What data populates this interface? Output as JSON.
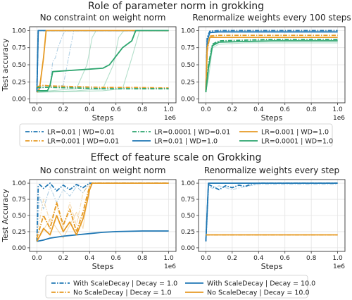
{
  "figure": {
    "top_title": "Role of parameter norm in grokking",
    "bottom_title": "Effect of feature scale on Grokking"
  },
  "colors": {
    "blue": "#1f77b4",
    "orange": "#e69a24",
    "green": "#2ca56e"
  },
  "chart_data": [
    {
      "id": "p1",
      "type": "line",
      "title": "No constraint on weight norm",
      "xlabel": "Steps",
      "ylabel": "Test accuracy",
      "x_offset_label": "1e6",
      "xlim": [
        0,
        1.0
      ],
      "ylim": [
        0,
        1.0
      ],
      "xticks": [
        "0.0",
        "0.2",
        "0.4",
        "0.6",
        "0.8",
        "1.0"
      ],
      "yticks": [
        "0.00",
        "0.25",
        "0.50",
        "0.75",
        "1.00"
      ],
      "series": [
        {
          "name": "LR=0.01 | WD=0.01",
          "color": "blue",
          "dash": "dashdot",
          "x": [
            0,
            0.01,
            0.02,
            1.0
          ],
          "y": [
            0.12,
            1.0,
            1.0,
            1.0
          ]
        },
        {
          "name": "LR=0.01 | WD=1.0",
          "color": "blue",
          "dash": "solid",
          "x": [
            0,
            0.01,
            0.02,
            1.0
          ],
          "y": [
            0.1,
            1.0,
            1.0,
            1.0
          ]
        },
        {
          "name": "LR=0.001 | WD=0.01",
          "color": "orange",
          "dash": "dashdot",
          "x": [
            0,
            0.05,
            0.1,
            0.3,
            0.5,
            0.7,
            1.0
          ],
          "y": [
            0.18,
            0.2,
            0.19,
            0.18,
            0.17,
            0.17,
            0.16
          ]
        },
        {
          "name": "LR=0.001 | WD=1.0",
          "color": "orange",
          "dash": "solid",
          "x": [
            0,
            0.02,
            0.05,
            0.07,
            1.0
          ],
          "y": [
            0.1,
            0.15,
            0.6,
            1.0,
            1.0
          ]
        },
        {
          "name": "LR=0.0001 | WD=0.01",
          "color": "green",
          "dash": "dashdot",
          "x": [
            0,
            0.1,
            0.3,
            0.5,
            0.7,
            1.0
          ],
          "y": [
            0.17,
            0.17,
            0.16,
            0.15,
            0.15,
            0.15
          ]
        },
        {
          "name": "LR=0.0001 | WD=1.0",
          "color": "green",
          "dash": "solid",
          "x": [
            0,
            0.02,
            0.08,
            0.1,
            0.12,
            0.5,
            0.55,
            0.65,
            0.72,
            0.75,
            1.0
          ],
          "y": [
            0.12,
            0.12,
            0.12,
            0.2,
            0.4,
            0.45,
            0.5,
            0.75,
            0.85,
            1.0,
            1.0
          ]
        }
      ],
      "faint": [
        {
          "color": "blue",
          "dash": "dashdot",
          "x": [
            0,
            0.1,
            0.12,
            0.14,
            0.16,
            0.18,
            0.2,
            0.22,
            1.0
          ],
          "y": [
            0.15,
            0.2,
            0.55,
            0.6,
            0.75,
            0.85,
            0.95,
            1.0,
            1.0
          ]
        },
        {
          "color": "blue",
          "dash": "dashdot",
          "x": [
            0,
            0.2,
            0.22,
            0.24,
            0.26,
            0.28,
            1.0
          ],
          "y": [
            0.15,
            0.2,
            0.4,
            0.6,
            0.8,
            1.0,
            1.0
          ]
        },
        {
          "color": "green",
          "dash": "solid",
          "x": [
            0,
            0.1,
            0.3,
            0.38,
            0.42,
            0.45,
            1.0
          ],
          "y": [
            0.1,
            0.12,
            0.15,
            0.5,
            0.9,
            1.0,
            1.0
          ]
        },
        {
          "color": "green",
          "dash": "solid",
          "x": [
            0,
            0.3,
            0.5,
            0.58,
            0.62,
            0.66,
            1.0
          ],
          "y": [
            0.1,
            0.12,
            0.15,
            0.5,
            0.9,
            1.0,
            1.0
          ]
        },
        {
          "color": "green",
          "dash": "solid",
          "x": [
            0,
            0.5,
            0.65,
            0.72,
            0.78,
            1.0
          ],
          "y": [
            0.1,
            0.12,
            0.15,
            0.6,
            1.0,
            1.0
          ]
        }
      ]
    },
    {
      "id": "p2",
      "type": "line",
      "title": "Renormalize weights every 100 steps",
      "xlabel": "Steps",
      "ylabel": "",
      "x_offset_label": "1e6",
      "xlim": [
        0,
        1.0
      ],
      "ylim": [
        0,
        1.0
      ],
      "xticks": [
        "0.0",
        "0.2",
        "0.4",
        "0.6",
        "0.8",
        "1.0"
      ],
      "yticks": [
        "0.00",
        "0.25",
        "0.50",
        "0.75",
        "1.00"
      ],
      "series": [
        {
          "name": "LR=0.01 | WD=0.01",
          "color": "blue",
          "dash": "dashdot",
          "x": [
            0,
            0.01,
            0.03,
            0.1,
            0.5,
            1.0
          ],
          "y": [
            0.12,
            0.9,
            0.99,
            1.0,
            1.0,
            1.0
          ]
        },
        {
          "name": "LR=0.01 | WD=1.0",
          "color": "blue",
          "dash": "solid",
          "x": [
            0,
            0.01,
            0.03,
            0.1,
            0.5,
            1.0
          ],
          "y": [
            0.12,
            0.85,
            0.97,
            0.98,
            0.98,
            0.98
          ]
        },
        {
          "name": "LR=0.001 | WD=0.01",
          "color": "orange",
          "dash": "dashdot",
          "x": [
            0,
            0.01,
            0.03,
            0.1,
            0.5,
            1.0
          ],
          "y": [
            0.1,
            0.7,
            0.92,
            0.93,
            0.93,
            0.93
          ]
        },
        {
          "name": "LR=0.001 | WD=1.0",
          "color": "orange",
          "dash": "solid",
          "x": [
            0,
            0.01,
            0.03,
            0.1,
            0.5,
            1.0
          ],
          "y": [
            0.1,
            0.75,
            0.9,
            0.9,
            0.9,
            0.9
          ]
        },
        {
          "name": "LR=0.0001 | WD=0.01",
          "color": "green",
          "dash": "dashdot",
          "x": [
            0,
            0.02,
            0.05,
            0.1,
            0.5,
            1.0
          ],
          "y": [
            0.1,
            0.5,
            0.8,
            0.85,
            0.87,
            0.87
          ]
        },
        {
          "name": "LR=0.0001 | WD=1.0",
          "color": "green",
          "dash": "solid",
          "x": [
            0,
            0.02,
            0.05,
            0.1,
            0.5,
            1.0
          ],
          "y": [
            0.1,
            0.45,
            0.78,
            0.83,
            0.85,
            0.85
          ]
        }
      ],
      "faint": [
        {
          "color": "green",
          "dash": "solid",
          "x": [
            0,
            0.02,
            0.05,
            0.1,
            0.3,
            1.0
          ],
          "y": [
            0.1,
            0.3,
            0.75,
            0.8,
            0.82,
            0.82
          ]
        }
      ]
    },
    {
      "id": "p3",
      "type": "line",
      "title": "No constraint on weight norm",
      "xlabel": "Steps",
      "ylabel": "Test Accuracy",
      "x_offset_label": "1e6",
      "xlim": [
        0,
        1.0
      ],
      "ylim": [
        0,
        1.0
      ],
      "xticks": [
        "0.0",
        "0.2",
        "0.4",
        "0.6",
        "0.8",
        "1.0"
      ],
      "yticks": [
        "0.00",
        "0.25",
        "0.50",
        "0.75",
        "1.00"
      ],
      "series": [
        {
          "name": "With ScaleDecay | Decay = 1.0",
          "color": "blue",
          "dash": "dashdot",
          "x": [
            0,
            0.01,
            0.02,
            0.05,
            0.1,
            0.15,
            0.2,
            0.25,
            0.3,
            0.35,
            0.4,
            0.45,
            1.0
          ],
          "y": [
            0.1,
            0.95,
            0.98,
            0.92,
            1.0,
            0.88,
            0.97,
            0.9,
            0.98,
            0.93,
            1.0,
            1.0,
            1.0
          ]
        },
        {
          "name": "With ScaleDecay | Decay = 10.0",
          "color": "blue",
          "dash": "solid",
          "x": [
            0,
            0.05,
            0.1,
            0.2,
            0.3,
            0.4,
            0.5,
            0.6,
            0.8,
            1.0
          ],
          "y": [
            0.1,
            0.12,
            0.15,
            0.18,
            0.2,
            0.22,
            0.24,
            0.25,
            0.26,
            0.26
          ]
        },
        {
          "name": "No ScaleDecay | Decay = 1.0",
          "color": "orange",
          "dash": "dashdot",
          "x": [
            0,
            0.05,
            0.1,
            0.15,
            0.2,
            0.25,
            0.3,
            0.35,
            0.38,
            0.4,
            0.42,
            1.0
          ],
          "y": [
            0.15,
            0.5,
            0.3,
            0.7,
            0.35,
            0.6,
            0.25,
            0.55,
            0.8,
            0.95,
            1.0,
            1.0
          ]
        },
        {
          "name": "No ScaleDecay | Decay = 10.0",
          "color": "orange",
          "dash": "solid",
          "x": [
            0,
            0.05,
            0.1,
            0.15,
            0.2,
            0.25,
            0.3,
            0.35,
            0.38,
            0.4,
            0.42,
            1.0
          ],
          "y": [
            0.1,
            0.3,
            0.2,
            0.5,
            0.25,
            0.4,
            0.2,
            0.45,
            0.7,
            0.9,
            1.0,
            1.0
          ]
        }
      ],
      "faint": [
        {
          "color": "blue",
          "dash": "dashdot",
          "x": [
            0,
            0.02,
            0.05,
            0.1,
            0.15,
            0.2,
            0.25,
            0.3,
            0.35,
            0.4,
            1.0
          ],
          "y": [
            0.1,
            0.8,
            0.6,
            0.95,
            0.7,
            0.9,
            0.8,
            0.95,
            0.85,
            1.0,
            1.0
          ]
        },
        {
          "color": "orange",
          "dash": "dashdot",
          "x": [
            0,
            0.05,
            0.1,
            0.15,
            0.2,
            0.25,
            0.3,
            0.35,
            0.4,
            1.0
          ],
          "y": [
            0.2,
            0.75,
            0.4,
            0.65,
            0.3,
            0.7,
            0.35,
            0.85,
            1.0,
            1.0
          ]
        },
        {
          "color": "orange",
          "dash": "solid",
          "x": [
            0,
            0.1,
            0.2,
            0.3,
            0.35,
            0.4,
            1.0
          ],
          "y": [
            0.1,
            0.45,
            0.15,
            0.55,
            0.3,
            1.0,
            1.0
          ]
        }
      ]
    },
    {
      "id": "p4",
      "type": "line",
      "title": "Renormalize weights every step",
      "xlabel": "Steps",
      "ylabel": "",
      "x_offset_label": "1e6",
      "xlim": [
        0,
        1.0
      ],
      "ylim": [
        0,
        1.0
      ],
      "xticks": [
        "0.0",
        "0.2",
        "0.4",
        "0.6",
        "0.8",
        "1.0"
      ],
      "yticks": [
        "0.00",
        "0.25",
        "0.50",
        "0.75",
        "1.00"
      ],
      "series": [
        {
          "name": "With ScaleDecay | Decay = 1.0",
          "color": "blue",
          "dash": "dashdot",
          "x": [
            0,
            0.02,
            0.05,
            0.1,
            0.15,
            0.2,
            0.25,
            0.3,
            0.35,
            0.4,
            1.0
          ],
          "y": [
            0.1,
            0.98,
            0.95,
            0.9,
            0.96,
            0.93,
            0.97,
            0.95,
            0.99,
            1.0,
            1.0
          ]
        },
        {
          "name": "With ScaleDecay | Decay = 10.0",
          "color": "blue",
          "dash": "solid",
          "x": [
            0,
            0.02,
            0.05,
            1.0
          ],
          "y": [
            0.1,
            1.0,
            1.0,
            1.0
          ]
        },
        {
          "name": "No ScaleDecay | Decay = 1.0",
          "color": "orange",
          "dash": "dashdot",
          "x": [
            0,
            0.02,
            0.05,
            1.0
          ],
          "y": [
            0.2,
            0.2,
            0.2,
            0.2
          ]
        },
        {
          "name": "No ScaleDecay | Decay = 10.0",
          "color": "orange",
          "dash": "solid",
          "x": [
            0,
            0.02,
            0.05,
            1.0
          ],
          "y": [
            0.2,
            0.2,
            0.2,
            0.2
          ]
        }
      ],
      "faint": [
        {
          "color": "blue",
          "dash": "dashdot",
          "x": [
            0,
            0.02,
            0.05,
            0.1,
            0.2,
            0.3,
            0.4,
            1.0
          ],
          "y": [
            0.1,
            0.95,
            0.92,
            0.96,
            0.9,
            0.95,
            0.98,
            0.98
          ]
        }
      ]
    }
  ],
  "legends": {
    "top": [
      {
        "label": "LR=0.01 | WD=0.01",
        "color": "blue",
        "dash": "dashdot"
      },
      {
        "label": "LR=0.001 | WD=0.01",
        "color": "orange",
        "dash": "dashdot"
      },
      {
        "label": "LR=0.0001 | WD=0.01",
        "color": "green",
        "dash": "dashdot"
      },
      {
        "label": "LR=0.01 | WD=1.0",
        "color": "blue",
        "dash": "solid"
      },
      {
        "label": "LR=0.001 | WD=1.0",
        "color": "orange",
        "dash": "solid"
      },
      {
        "label": "LR=0.0001 | WD=1.0",
        "color": "green",
        "dash": "solid"
      }
    ],
    "bottom": [
      {
        "label": "With ScaleDecay | Decay = 1.0",
        "color": "blue",
        "dash": "dashdot"
      },
      {
        "label": "No ScaleDecay | Decay = 1.0",
        "color": "orange",
        "dash": "dashdot"
      },
      {
        "label": "With ScaleDecay | Decay = 10.0",
        "color": "blue",
        "dash": "solid"
      },
      {
        "label": "No ScaleDecay | Decay = 10.0",
        "color": "orange",
        "dash": "solid"
      }
    ]
  }
}
